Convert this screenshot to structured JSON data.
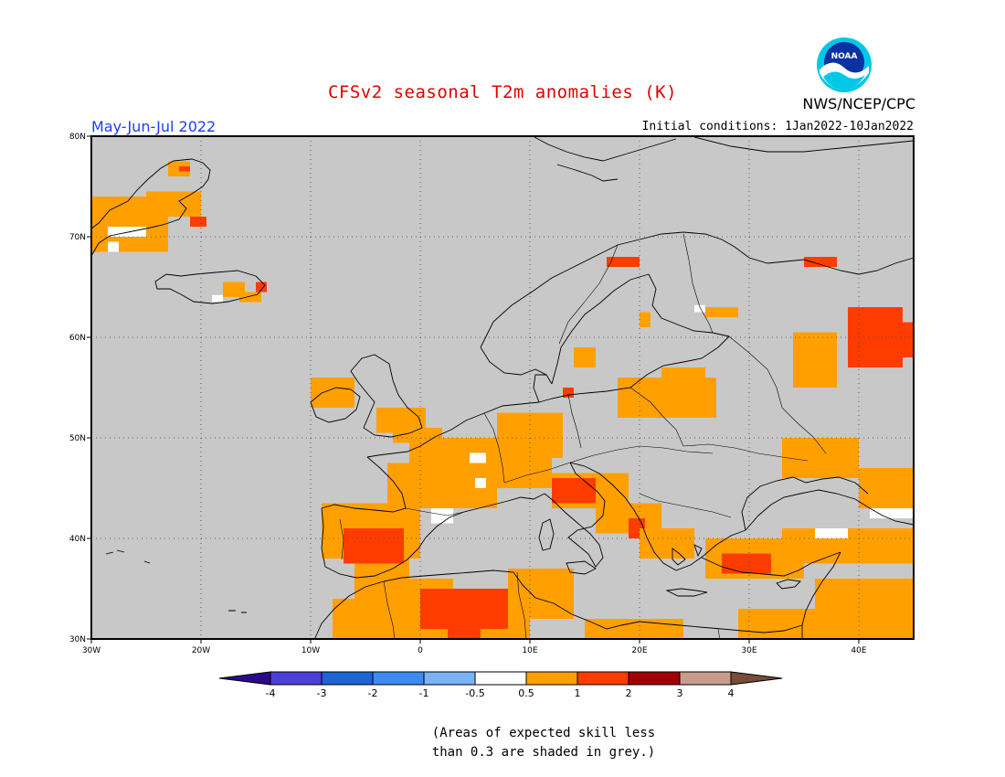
{
  "header": {
    "title": "CFSv2 seasonal T2m anomalies (K)",
    "agency": "NWS/NCEP/CPC",
    "season": "May-Jun-Jul 2022",
    "initial_conditions": "Initial conditions: 1Jan2022-10Jan2022",
    "logo_text": "NOAA"
  },
  "map": {
    "lon_range": [
      -30,
      45
    ],
    "lat_range": [
      30,
      80
    ],
    "lat_ticks": [
      {
        "value": 80,
        "label": "80N"
      },
      {
        "value": 70,
        "label": "70N"
      },
      {
        "value": 60,
        "label": "60N"
      },
      {
        "value": 50,
        "label": "50N"
      },
      {
        "value": 40,
        "label": "40N"
      },
      {
        "value": 30,
        "label": "30N"
      }
    ],
    "lon_ticks": [
      {
        "value": -30,
        "label": "30W"
      },
      {
        "value": -20,
        "label": "20W"
      },
      {
        "value": -10,
        "label": "10W"
      },
      {
        "value": 0,
        "label": "0"
      },
      {
        "value": 10,
        "label": "10E"
      },
      {
        "value": 20,
        "label": "20E"
      },
      {
        "value": 30,
        "label": "30E"
      },
      {
        "value": 40,
        "label": "40E"
      }
    ],
    "grid": true,
    "background_color": "#c8c8c8",
    "anomaly_regions": [
      {
        "category": "0.5-1",
        "lon": [
          -30,
          -23
        ],
        "lat": [
          68.5,
          74
        ]
      },
      {
        "category": "0.5-1",
        "lon": [
          -25,
          -20
        ],
        "lat": [
          72,
          74.5
        ]
      },
      {
        "category": "0.5-1",
        "lon": [
          -23,
          -21
        ],
        "lat": [
          76,
          77.5
        ]
      },
      {
        "category": "1-2",
        "lon": [
          -21,
          -19.5
        ],
        "lat": [
          71,
          72
        ]
      },
      {
        "category": "1-2",
        "lon": [
          -22,
          -21
        ],
        "lat": [
          76.5,
          77
        ]
      },
      {
        "category": "-0.5-0.5",
        "lon": [
          -28.5,
          -25
        ],
        "lat": [
          70,
          71
        ]
      },
      {
        "category": "-0.5-0.5",
        "lon": [
          -28.5,
          -27.5
        ],
        "lat": [
          68.5,
          69.5
        ]
      },
      {
        "category": "0.5-1",
        "lon": [
          -18,
          -16
        ],
        "lat": [
          64,
          65.5
        ]
      },
      {
        "category": "0.5-1",
        "lon": [
          -16.5,
          -14.5
        ],
        "lat": [
          63.5,
          64.5
        ]
      },
      {
        "category": "1-2",
        "lon": [
          -15,
          -14
        ],
        "lat": [
          64.5,
          65.5
        ]
      },
      {
        "category": "-0.5-0.5",
        "lon": [
          -19,
          -18
        ],
        "lat": [
          63.5,
          64.2
        ]
      },
      {
        "category": "0.5-1",
        "lon": [
          -10,
          -6
        ],
        "lat": [
          53,
          56
        ]
      },
      {
        "category": "0.5-1",
        "lon": [
          -4,
          0.5
        ],
        "lat": [
          50.5,
          53
        ]
      },
      {
        "category": "0.5-1",
        "lon": [
          -2.5,
          2
        ],
        "lat": [
          49.5,
          51
        ]
      },
      {
        "category": "0.5-1",
        "lon": [
          -1,
          8
        ],
        "lat": [
          47,
          50
        ]
      },
      {
        "category": "0.5-1",
        "lon": [
          -3,
          7
        ],
        "lat": [
          43,
          47.5
        ]
      },
      {
        "category": "0.5-1",
        "lon": [
          7,
          13
        ],
        "lat": [
          48,
          52.5
        ]
      },
      {
        "category": "0.5-1",
        "lon": [
          7,
          12
        ],
        "lat": [
          45,
          49
        ]
      },
      {
        "category": "0.5-1",
        "lon": [
          -9,
          0
        ],
        "lat": [
          38,
          43.5
        ]
      },
      {
        "category": "0.5-1",
        "lon": [
          -6,
          -1
        ],
        "lat": [
          36,
          38
        ]
      },
      {
        "category": "1-2",
        "lon": [
          -7,
          -1.5
        ],
        "lat": [
          37.5,
          41
        ]
      },
      {
        "category": "-0.5-0.5",
        "lon": [
          1,
          3
        ],
        "lat": [
          41.5,
          43
        ]
      },
      {
        "category": "-0.5-0.5",
        "lon": [
          5,
          6
        ],
        "lat": [
          45,
          46
        ]
      },
      {
        "category": "-0.5-0.5",
        "lon": [
          4.5,
          6
        ],
        "lat": [
          47.5,
          48.5
        ]
      },
      {
        "category": "0.5-1",
        "lon": [
          12,
          19
        ],
        "lat": [
          43,
          46.5
        ]
      },
      {
        "category": "1-2",
        "lon": [
          12,
          16
        ],
        "lat": [
          43.5,
          46
        ]
      },
      {
        "category": "0.5-1",
        "lon": [
          16,
          22
        ],
        "lat": [
          40.5,
          43.5
        ]
      },
      {
        "category": "1-2",
        "lon": [
          19,
          20.5
        ],
        "lat": [
          40,
          42
        ]
      },
      {
        "category": "0.5-1",
        "lon": [
          20,
          25
        ],
        "lat": [
          38,
          41
        ]
      },
      {
        "category": "0.5-1",
        "lon": [
          26,
          35
        ],
        "lat": [
          36,
          40
        ]
      },
      {
        "category": "1-2",
        "lon": [
          27.5,
          32
        ],
        "lat": [
          36.5,
          38.5
        ]
      },
      {
        "category": "0.5-1",
        "lon": [
          33,
          45
        ],
        "lat": [
          37.5,
          41
        ]
      },
      {
        "category": "-0.5-0.5",
        "lon": [
          36,
          39
        ],
        "lat": [
          40,
          41
        ]
      },
      {
        "category": "-0.5-0.5",
        "lon": [
          41,
          45
        ],
        "lat": [
          42,
          43
        ]
      },
      {
        "category": "0.5-1",
        "lon": [
          36,
          45
        ],
        "lat": [
          30,
          36
        ]
      },
      {
        "category": "0.5-1",
        "lon": [
          29,
          36
        ],
        "lat": [
          30,
          33
        ]
      },
      {
        "category": "0.5-1",
        "lon": [
          -8,
          10
        ],
        "lat": [
          30,
          34
        ]
      },
      {
        "category": "0.5-1",
        "lon": [
          -6,
          3
        ],
        "lat": [
          34,
          36
        ]
      },
      {
        "category": "1-2",
        "lon": [
          0,
          8
        ],
        "lat": [
          31,
          35
        ]
      },
      {
        "category": "1-2",
        "lon": [
          2.5,
          5.5
        ],
        "lat": [
          30,
          31.5
        ]
      },
      {
        "category": "0.5-1",
        "lon": [
          8,
          14
        ],
        "lat": [
          32,
          37
        ]
      },
      {
        "category": "0.5-1",
        "lon": [
          15,
          24
        ],
        "lat": [
          30,
          32
        ]
      },
      {
        "category": "0.5-1",
        "lon": [
          18,
          27
        ],
        "lat": [
          52,
          56
        ]
      },
      {
        "category": "0.5-1",
        "lon": [
          22,
          26
        ],
        "lat": [
          55,
          57
        ]
      },
      {
        "category": "0.5-1",
        "lon": [
          20,
          21
        ],
        "lat": [
          61,
          62.5
        ]
      },
      {
        "category": "0.5-1",
        "lon": [
          14,
          16
        ],
        "lat": [
          57,
          59
        ]
      },
      {
        "category": "0.5-1",
        "lon": [
          34,
          38
        ],
        "lat": [
          55,
          60.5
        ]
      },
      {
        "category": "0.5-1",
        "lon": [
          33,
          40
        ],
        "lat": [
          46,
          50
        ]
      },
      {
        "category": "0.5-1",
        "lon": [
          40,
          45
        ],
        "lat": [
          43,
          47
        ]
      },
      {
        "category": "1-2",
        "lon": [
          39,
          44
        ],
        "lat": [
          57,
          63
        ]
      },
      {
        "category": "1-2",
        "lon": [
          43,
          45
        ],
        "lat": [
          58,
          61.5
        ]
      },
      {
        "category": "1-2",
        "lon": [
          35,
          38
        ],
        "lat": [
          67,
          68
        ]
      },
      {
        "category": "1-2",
        "lon": [
          17,
          20
        ],
        "lat": [
          67,
          68
        ]
      },
      {
        "category": "1-2",
        "lon": [
          13,
          14
        ],
        "lat": [
          54,
          55
        ]
      },
      {
        "category": "0.5-1",
        "lon": [
          26,
          29
        ],
        "lat": [
          62,
          63
        ]
      },
      {
        "category": "-0.5-0.5",
        "lon": [
          25,
          26
        ],
        "lat": [
          62.5,
          63.2
        ]
      }
    ],
    "land_outlines": [
      "greenland",
      "iceland",
      "svalbard",
      "novaya-zemlya",
      "british-isles",
      "ireland",
      "scandinavia",
      "finland",
      "continental-europe",
      "iberia",
      "italy",
      "balkans",
      "greece",
      "anatolia",
      "north-africa",
      "crimea",
      "corsica-sardinia",
      "sicily",
      "crete",
      "cyprus",
      "denmark",
      "baltic-coast"
    ]
  },
  "colorbar": {
    "colors": [
      "#2a0a8c",
      "#4b3fd6",
      "#1e64d2",
      "#3c8cf0",
      "#78b4f5",
      "#ffffff",
      "#ffa000",
      "#ff3c00",
      "#a00000",
      "#c89b8c",
      "#7a4a3a"
    ],
    "labels": [
      "-4",
      "-3",
      "-2",
      "-1",
      "-0.5",
      "0.5",
      "1",
      "2",
      "3",
      "4"
    ],
    "category_colors": {
      "-0.5-0.5": "#ffffff",
      "0.5-1": "#ffa000",
      "1-2": "#ff3c00",
      "2-3": "#a00000"
    }
  },
  "footer": {
    "note_line1": "(Areas of expected skill less",
    "note_line2": "than 0.3 are shaded in grey.)"
  }
}
